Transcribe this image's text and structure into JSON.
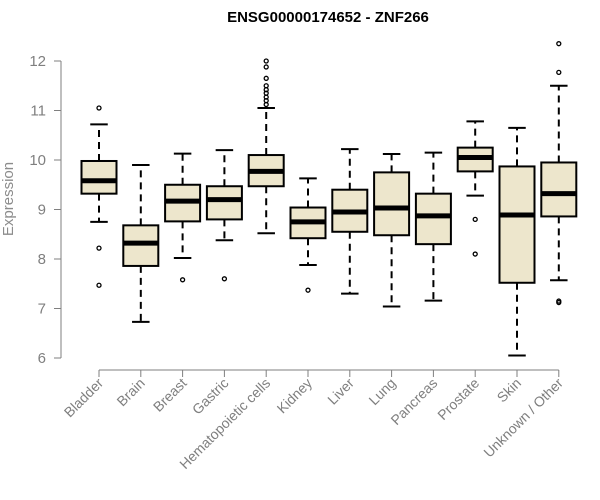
{
  "chart_data": {
    "type": "boxplot",
    "title": "ENSG00000174652 - ZNF266",
    "xlabel": "",
    "ylabel": "Expression",
    "ylim": [
      6,
      12
    ],
    "yticks": [
      6,
      7,
      8,
      9,
      10,
      11,
      12
    ],
    "grid": false,
    "colors": {
      "box_fill": "#ede6cc",
      "box_stroke": "#000000",
      "median": "#000000",
      "axis": "#7f7f7f"
    },
    "categories": [
      "Bladder",
      "Brain",
      "Breast",
      "Gastric",
      "Hematopoietic cells",
      "Kidney",
      "Liver",
      "Lung",
      "Pancreas",
      "Prostate",
      "Skin",
      "Unknown / Other"
    ],
    "boxes": [
      {
        "name": "Bladder",
        "whisker_low": 8.75,
        "q1": 9.32,
        "median": 9.58,
        "q3": 9.98,
        "whisker_high": 10.72,
        "outliers": [
          11.05,
          8.22,
          7.47
        ]
      },
      {
        "name": "Brain",
        "whisker_low": 6.73,
        "q1": 7.86,
        "median": 8.32,
        "q3": 8.68,
        "whisker_high": 9.9,
        "outliers": []
      },
      {
        "name": "Breast",
        "whisker_low": 8.02,
        "q1": 8.76,
        "median": 9.17,
        "q3": 9.5,
        "whisker_high": 10.13,
        "outliers": [
          7.58
        ]
      },
      {
        "name": "Gastric",
        "whisker_low": 8.38,
        "q1": 8.8,
        "median": 9.2,
        "q3": 9.47,
        "whisker_high": 10.2,
        "outliers": [
          7.6
        ]
      },
      {
        "name": "Hematopoietic cells",
        "whisker_low": 8.52,
        "q1": 9.47,
        "median": 9.77,
        "q3": 10.1,
        "whisker_high": 11.05,
        "outliers": [
          11.12,
          11.2,
          11.27,
          11.35,
          11.42,
          11.5,
          11.65,
          11.88,
          12.0
        ]
      },
      {
        "name": "Kidney",
        "whisker_low": 7.88,
        "q1": 8.42,
        "median": 8.75,
        "q3": 9.04,
        "whisker_high": 9.63,
        "outliers": [
          7.37
        ]
      },
      {
        "name": "Liver",
        "whisker_low": 7.3,
        "q1": 8.55,
        "median": 8.95,
        "q3": 9.4,
        "whisker_high": 10.22,
        "outliers": []
      },
      {
        "name": "Lung",
        "whisker_low": 7.04,
        "q1": 8.48,
        "median": 9.03,
        "q3": 9.75,
        "whisker_high": 10.12,
        "outliers": []
      },
      {
        "name": "Pancreas",
        "whisker_low": 7.16,
        "q1": 8.3,
        "median": 8.87,
        "q3": 9.32,
        "whisker_high": 10.15,
        "outliers": []
      },
      {
        "name": "Prostate",
        "whisker_low": 9.28,
        "q1": 9.77,
        "median": 10.05,
        "q3": 10.25,
        "whisker_high": 10.78,
        "outliers": [
          8.8,
          8.1
        ]
      },
      {
        "name": "Skin",
        "whisker_low": 6.05,
        "q1": 7.52,
        "median": 8.89,
        "q3": 9.87,
        "whisker_high": 10.65,
        "outliers": []
      },
      {
        "name": "Unknown / Other",
        "whisker_low": 7.57,
        "q1": 8.86,
        "median": 9.32,
        "q3": 9.95,
        "whisker_high": 11.5,
        "outliers": [
          11.77,
          12.35,
          7.15,
          7.12
        ]
      }
    ]
  }
}
